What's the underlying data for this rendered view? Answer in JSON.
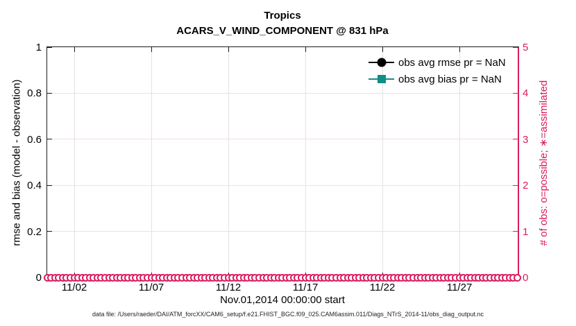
{
  "title": {
    "line1": "Tropics",
    "line2": "ACARS_V_WIND_COMPONENT @ 831 hPa"
  },
  "axes": {
    "left_label": "rmse and bias (model - observation)",
    "left_tick_labels": [
      "1",
      "0.8",
      "0.6",
      "0.4",
      "0.2",
      "0"
    ],
    "right_label": "# of obs: o=possible; ∗=assimilated",
    "right_tick_labels": [
      "5",
      "4",
      "3",
      "2",
      "1",
      "0"
    ],
    "x_tick_labels": [
      "11/02",
      "11/07",
      "11/12",
      "11/17",
      "11/22",
      "11/27"
    ],
    "x_label": "Nov.01,2014 00:00:00 start"
  },
  "legend": {
    "items": [
      {
        "label": "obs avg rmse pr = NaN",
        "marker": "circle",
        "color": "#000000"
      },
      {
        "label": "obs avg bias pr = NaN",
        "marker": "square",
        "color": "#0f8e86"
      }
    ]
  },
  "footer": "data file: /Users/raeder/DAI/ATM_forcXX/CAM6_setup/f.e21.FHIST_BGC.f09_025.CAM6assim.011/Diags_NTrS_2014-11/obs_diag_output.nc",
  "colors": {
    "obs_pink": "#d81b5e",
    "teal": "#0f8e86",
    "grid_gray": "#e2e2e2",
    "grid_pink": "#f7dbe4",
    "axis_black": "#1a1a1a"
  },
  "chart_data": {
    "type": "line",
    "title": "Tropics — ACARS_V_WIND_COMPONENT @ 831 hPa",
    "xlabel": "Nov.01,2014 00:00:00 start",
    "x_tick_days": [
      1,
      6,
      11,
      16,
      21,
      26
    ],
    "x_range_days": [
      -0.76,
      29.78
    ],
    "left_axis": {
      "label": "rmse and bias (model - observation)",
      "ylim": [
        0,
        1
      ],
      "ticks": [
        1,
        0.8,
        0.6,
        0.4,
        0.2,
        0
      ]
    },
    "right_axis": {
      "label": "# of obs: o=possible; ∗=assimilated",
      "ylim": [
        0,
        5
      ],
      "ticks": [
        5,
        4,
        3,
        2,
        1,
        0
      ]
    },
    "grid": true,
    "legend_position": "upper right inside, no box",
    "series": [
      {
        "name": "obs avg rmse pr = NaN",
        "color": "#000000",
        "marker": "filled circle",
        "values": "all NaN — nothing plotted"
      },
      {
        "name": "obs avg bias pr = NaN",
        "color": "#0f8e86",
        "marker": "filled square",
        "values": "all NaN — nothing plotted"
      },
      {
        "name": "# of obs possible (right axis)",
        "color": "#d81b5e",
        "marker": "o",
        "times": "6-hourly bins, Nov 2014",
        "start_day": -0.75,
        "end_day": 29.75,
        "step_day": 0.25,
        "n_markers": 123,
        "value_per_time": 0
      }
    ]
  }
}
